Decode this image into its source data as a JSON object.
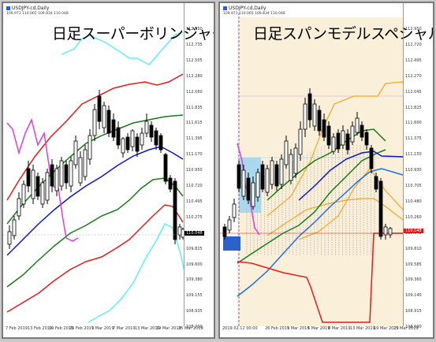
{
  "left": {
    "symbol": "USDJPY-cd,Daily",
    "quote_line": "109.971 110.065 109.834 110.048",
    "title": "日足スーパーボリンジャー",
    "price_labels": [
      "112.950",
      "112.735",
      "112.505",
      "112.280",
      "112.060",
      "111.835",
      "111.615",
      "111.395",
      "111.170",
      "110.950",
      "110.720",
      "110.495",
      "110.275",
      "110.045",
      "109.825",
      "109.600",
      "109.380",
      "109.155",
      "108.935",
      "108.700"
    ],
    "current_price": "110.048",
    "date_labels": [
      "7 Feb 2019",
      "13 Feb 2019",
      "19 Feb 2019",
      "25 Feb 2019",
      "1 Mar 2019",
      "7 Mar 2019",
      "13 Mar 2019",
      "19 Mar 2019",
      "25 Mar 2019"
    ]
  },
  "right": {
    "symbol": "USDJPY-cd,Daily",
    "quote_line": "109.971 110.065 109.834 110.048",
    "title": "日足スパンモデルスペシャル",
    "price_labels": [
      "112.950",
      "112.720",
      "112.495",
      "112.270",
      "112.045",
      "111.825",
      "111.600",
      "111.375",
      "111.150",
      "110.930",
      "110.705",
      "110.480",
      "110.260",
      "110.048",
      "109.810",
      "109.585",
      "109.360",
      "109.140",
      "108.915",
      "108.690"
    ],
    "current_price": "110.048",
    "date_labels": [
      "2019.02.12 00:00",
      "26 Feb 2019",
      "1 Mar 2019",
      "5 Mar 2019",
      "8 Mar 2019",
      "13 Mar 2019",
      "19 Mar 2019",
      "25 Mar 2019"
    ]
  },
  "colors": {
    "bull": "#ffffff",
    "bear": "#000000",
    "upper3": "#5ef0f5",
    "upper2": "#e81b1b",
    "upper1": "#1a7a1a",
    "middle": "#0a18c8",
    "chikou": "#e03ce0",
    "span_fill": "#faefd9",
    "orange": "#f5a623",
    "price_tag": "#e61414"
  }
}
